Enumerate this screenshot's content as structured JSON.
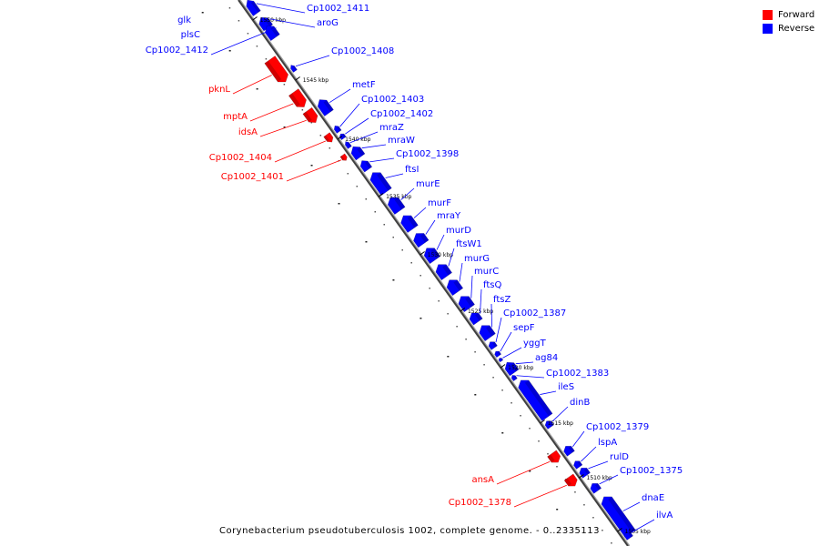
{
  "legend": {
    "forward_label": "Forward",
    "reverse_label": "Reverse",
    "forward_color": "#ff0000",
    "reverse_color": "#0000ff"
  },
  "caption": "Corynebacterium pseudotuberculosis 1002, complete genome. - 0..2335113",
  "ticks": [
    "1550 kbp",
    "1545 kbp",
    "1540 kbp",
    "1535 kbp",
    "1530 kbp",
    "1525 kbp",
    "1520 kbp",
    "1515 kbp",
    "1510 kbp",
    "1505 kbp"
  ],
  "genes": [
    {
      "name": "Cp1002_1411",
      "strand": "reverse"
    },
    {
      "name": "aroG",
      "strand": "reverse"
    },
    {
      "name": "glk",
      "strand": "reverse"
    },
    {
      "name": "plsC",
      "strand": "reverse"
    },
    {
      "name": "Cp1002_1412",
      "strand": "reverse"
    },
    {
      "name": "Cp1002_1408",
      "strand": "reverse"
    },
    {
      "name": "pknL",
      "strand": "forward"
    },
    {
      "name": "metF",
      "strand": "reverse"
    },
    {
      "name": "Cp1002_1403",
      "strand": "reverse"
    },
    {
      "name": "mptA",
      "strand": "forward"
    },
    {
      "name": "Cp1002_1402",
      "strand": "reverse"
    },
    {
      "name": "idsA",
      "strand": "forward"
    },
    {
      "name": "mraZ",
      "strand": "reverse"
    },
    {
      "name": "mraW",
      "strand": "reverse"
    },
    {
      "name": "Cp1002_1404",
      "strand": "forward"
    },
    {
      "name": "Cp1002_1398",
      "strand": "reverse"
    },
    {
      "name": "Cp1002_1401",
      "strand": "forward"
    },
    {
      "name": "ftsI",
      "strand": "reverse"
    },
    {
      "name": "murE",
      "strand": "reverse"
    },
    {
      "name": "murF",
      "strand": "reverse"
    },
    {
      "name": "mraY",
      "strand": "reverse"
    },
    {
      "name": "murD",
      "strand": "reverse"
    },
    {
      "name": "ftsW1",
      "strand": "reverse"
    },
    {
      "name": "murG",
      "strand": "reverse"
    },
    {
      "name": "murC",
      "strand": "reverse"
    },
    {
      "name": "ftsQ",
      "strand": "reverse"
    },
    {
      "name": "ftsZ",
      "strand": "reverse"
    },
    {
      "name": "Cp1002_1387",
      "strand": "reverse"
    },
    {
      "name": "sepF",
      "strand": "reverse"
    },
    {
      "name": "yggT",
      "strand": "reverse"
    },
    {
      "name": "ag84",
      "strand": "reverse"
    },
    {
      "name": "Cp1002_1383",
      "strand": "reverse"
    },
    {
      "name": "ileS",
      "strand": "reverse"
    },
    {
      "name": "dinB",
      "strand": "reverse"
    },
    {
      "name": "Cp1002_1379",
      "strand": "reverse"
    },
    {
      "name": "lspA",
      "strand": "reverse"
    },
    {
      "name": "rulD",
      "strand": "reverse"
    },
    {
      "name": "ansA",
      "strand": "forward"
    },
    {
      "name": "Cp1002_1375",
      "strand": "reverse"
    },
    {
      "name": "Cp1002_1378",
      "strand": "forward"
    },
    {
      "name": "dnaE",
      "strand": "reverse"
    },
    {
      "name": "ilvA",
      "strand": "reverse"
    }
  ]
}
